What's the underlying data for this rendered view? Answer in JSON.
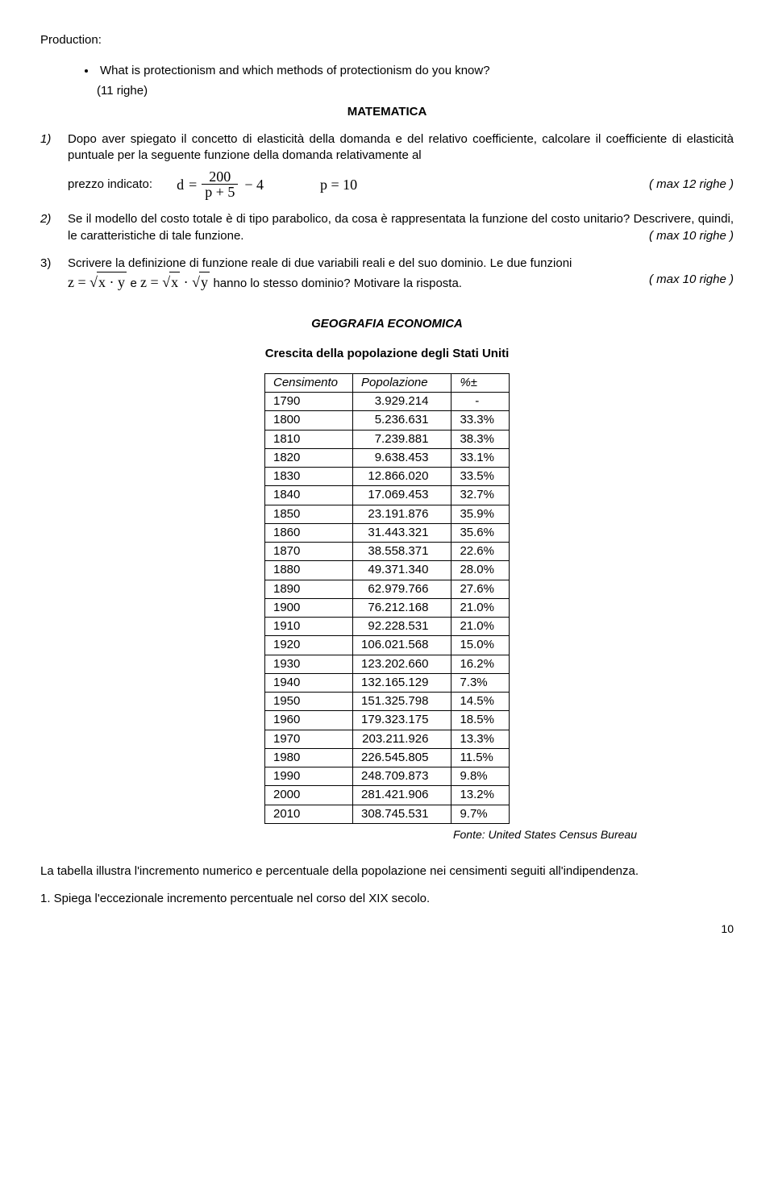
{
  "production": {
    "label": "Production:",
    "bullet": "What is protectionism and which methods of protectionism do you know?",
    "righe": "(11 righe)"
  },
  "matematica": {
    "heading": "MATEMATICA",
    "q1_num": "1)",
    "q1_text": "Dopo aver spiegato il concetto di elasticità della domanda e del relativo coefficiente, calcolare il coefficiente di elasticità puntuale per la seguente funzione della domanda relativamente al",
    "q1_prezzo": "prezzo indicato:",
    "q1_d": "d",
    "q1_eq": "=",
    "q1_num200": "200",
    "q1_den": "p + 5",
    "q1_minus4": "− 4",
    "q1_p10": "p = 10",
    "q1_righe": "( max 12 righe )",
    "q2_num": "2)",
    "q2_text": "Se il modello del costo totale è di tipo parabolico, da cosa è rappresentata la funzione del costo unitario? Descrivere, quindi, le caratteristiche di tale funzione.",
    "q2_righe": "( max 10 righe )",
    "q3_num": "3)",
    "q3_text_a": "Scrivere la definizione di funzione reale di due variabili reali e del suo dominio. Le due funzioni",
    "q3_z": "z =",
    "q3_xy": "x · y",
    "q3_e": " e ",
    "q3_z2": "z =",
    "q3_sx": "x",
    "q3_dot": "·",
    "q3_sy": "y",
    "q3_text_b": " hanno lo stesso dominio? Motivare la risposta.",
    "q3_righe": "( max 10 righe )"
  },
  "geo": {
    "heading": "GEOGRAFIA ECONOMICA",
    "subtitle": "Crescita della popolazione degli Stati Uniti",
    "cols": [
      "Censimento",
      "Popolazione",
      "%±"
    ],
    "rows": [
      [
        "1790",
        "3.929.214",
        "-"
      ],
      [
        "1800",
        "5.236.631",
        "33.3%"
      ],
      [
        "1810",
        "7.239.881",
        "38.3%"
      ],
      [
        "1820",
        "9.638.453",
        "33.1%"
      ],
      [
        "1830",
        "12.866.020",
        "33.5%"
      ],
      [
        "1840",
        "17.069.453",
        "32.7%"
      ],
      [
        "1850",
        "23.191.876",
        "35.9%"
      ],
      [
        "1860",
        "31.443.321",
        "35.6%"
      ],
      [
        "1870",
        "38.558.371",
        "22.6%"
      ],
      [
        "1880",
        "49.371.340",
        "28.0%"
      ],
      [
        "1890",
        "62.979.766",
        "27.6%"
      ],
      [
        "1900",
        "76.212.168",
        "21.0%"
      ],
      [
        "1910",
        "92.228.531",
        "21.0%"
      ],
      [
        "1920",
        "106.021.568",
        "15.0%"
      ],
      [
        "1930",
        "123.202.660",
        "16.2%"
      ],
      [
        "1940",
        "132.165.129",
        "7.3%"
      ],
      [
        "1950",
        "151.325.798",
        "14.5%"
      ],
      [
        "1960",
        "179.323.175",
        "18.5%"
      ],
      [
        "1970",
        "203.211.926",
        "13.3%"
      ],
      [
        "1980",
        "226.545.805",
        "11.5%"
      ],
      [
        "1990",
        "248.709.873",
        "9.8%"
      ],
      [
        "2000",
        "281.421.906",
        "13.2%"
      ],
      [
        "2010",
        "308.745.531",
        "9.7%"
      ]
    ],
    "fonte": "Fonte: United States Census Bureau",
    "para": "La tabella illustra l'incremento numerico e percentuale della popolazione nei censimenti seguiti all'indipendenza.",
    "q1": "1. Spiega l'eccezionale incremento percentuale nel corso del XIX secolo."
  },
  "pagenum": "10"
}
